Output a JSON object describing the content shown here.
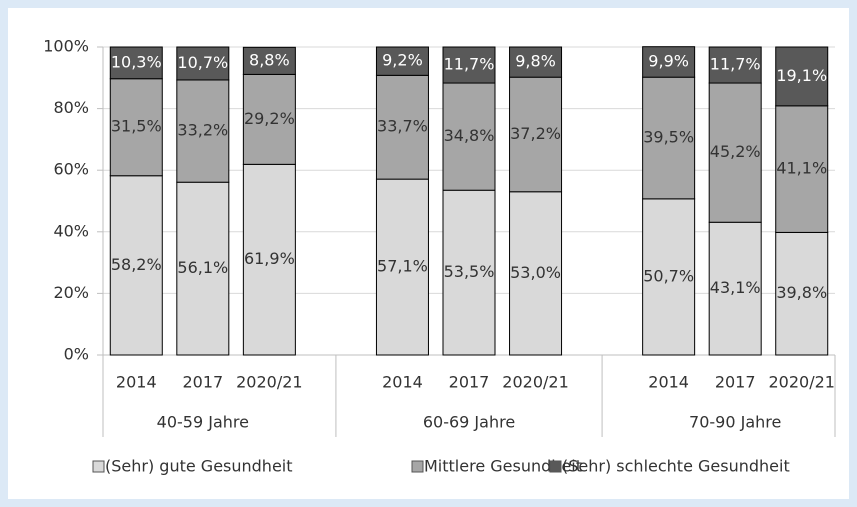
{
  "chart_data": {
    "type": "stacked-bar",
    "categories": [
      "2014",
      "2017",
      "2020/21",
      "2014",
      "2017",
      "2020/21",
      "2014",
      "2017",
      "2020/21"
    ],
    "groups": [
      "40-59 Jahre",
      "60-69 Jahre",
      "70-90 Jahre"
    ],
    "series": [
      {
        "name": "(Sehr) gute Gesundheit",
        "color": "#d9d9d9",
        "values": [
          58.2,
          56.1,
          61.9,
          57.1,
          53.5,
          53.0,
          50.7,
          43.1,
          39.8
        ],
        "value_labels": [
          "58,2%",
          "56,1%",
          "61,9%",
          "57,1%",
          "53,5%",
          "53,0%",
          "50,7%",
          "43,1%",
          "39,8%"
        ]
      },
      {
        "name": "Mittlere Gesundheit",
        "color": "#a6a6a6",
        "values": [
          31.5,
          33.2,
          29.2,
          33.7,
          34.8,
          37.2,
          39.5,
          45.2,
          41.1
        ],
        "value_labels": [
          "31,5%",
          "33,2%",
          "29,2%",
          "33,7%",
          "34,8%",
          "37,2%",
          "39,5%",
          "45,2%",
          "41,1%"
        ]
      },
      {
        "name": "(Sehr) schlechte Gesundheit",
        "color": "#595959",
        "values": [
          10.3,
          10.7,
          8.8,
          9.2,
          11.7,
          9.8,
          9.9,
          11.7,
          19.1
        ],
        "value_labels": [
          "10,3%",
          "10,7%",
          "8,8%",
          "9,2%",
          "11,7%",
          "9,8%",
          "9,9%",
          "11,7%",
          "19,1%"
        ]
      }
    ],
    "ylim": [
      0,
      100
    ],
    "yticks": [
      {
        "value": 0,
        "label": "0%"
      },
      {
        "value": 20,
        "label": "20%"
      },
      {
        "value": 40,
        "label": "40%"
      },
      {
        "value": 60,
        "label": "60%"
      },
      {
        "value": 80,
        "label": "80%"
      },
      {
        "value": 100,
        "label": "100%"
      }
    ],
    "grid": true,
    "legend": "bottom"
  }
}
